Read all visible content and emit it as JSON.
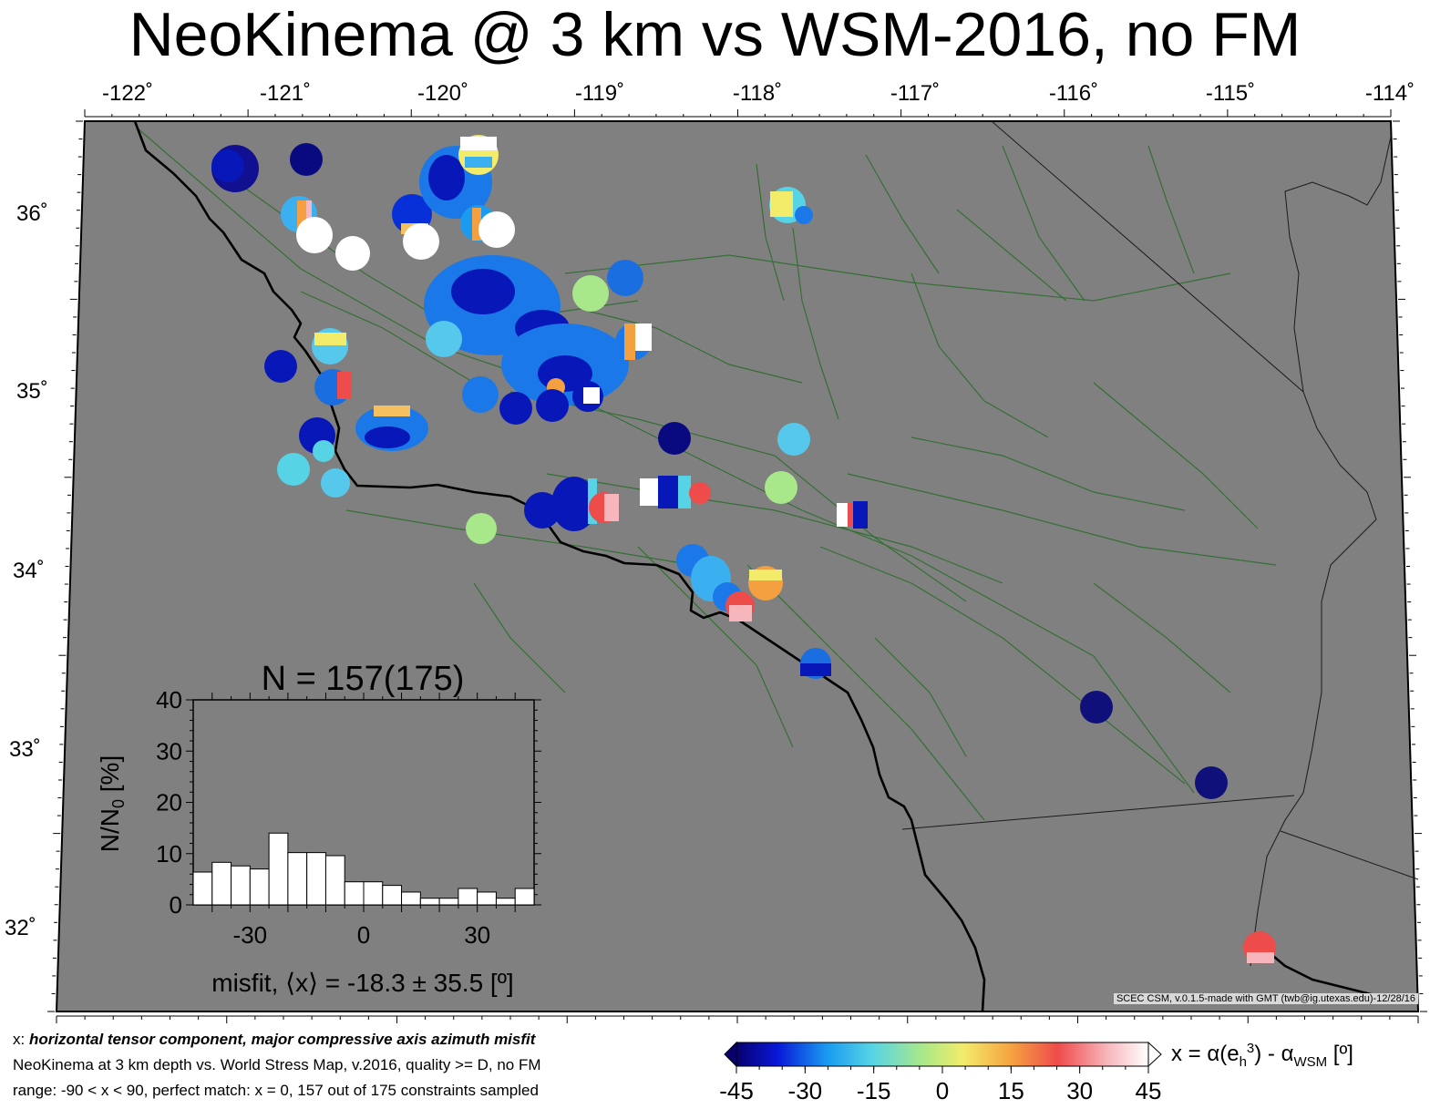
{
  "title": "NeoKinema @ 3 km vs WSM-2016, no FM",
  "longitude_labels": [
    "-122˚",
    "-121˚",
    "-120˚",
    "-119˚",
    "-118˚",
    "-117˚",
    "-116˚",
    "-115˚",
    "-114˚"
  ],
  "latitude_labels": [
    "36˚",
    "35˚",
    "34˚",
    "33˚",
    "32˚"
  ],
  "credit": "SCEC CSM, v.0.1.5-made with GMT (twb@ig.utexas.edu)-12/28/16",
  "notes": {
    "line1_prefix": "x: ",
    "line1_emph": "horizontal tensor component, major compressive axis azimuth misfit",
    "line2": "NeoKinema at 3 km depth vs.  World Stress Map, v.2016, quality >= D, no FM",
    "line3": "range: -90 < x < 90, perfect match: x = 0, 157 out of 175 constraints sampled"
  },
  "colorbar": {
    "ticks": [
      "-45",
      "-30",
      "-15",
      "0",
      "15",
      "30",
      "45"
    ],
    "range": [
      -45,
      45
    ],
    "formula": "x = α(e",
    "formula_sub": "h",
    "formula_sup": "3",
    "formula_rest": ") - α",
    "formula_sub2": "WSM",
    "formula_unit": " [º]"
  },
  "colors": {
    "map_bg": "#808080",
    "fault": "#2d6e2d",
    "coast": "#000000",
    "border": "#1a1a1a"
  },
  "chart_data": {
    "type": "bar",
    "title": "N = 157(175)",
    "xlabel": "misfit, ⟨x⟩ = -18.3 ± 35.5 [º]",
    "ylabel": "N/N",
    "ylabel_sub": "0",
    "ylabel_unit": " [%]",
    "xlim": [
      -45,
      45
    ],
    "ylim": [
      0,
      40
    ],
    "xticks": [
      -30,
      0,
      30
    ],
    "yticks": [
      0,
      10,
      20,
      30,
      40
    ],
    "bin_width": 5,
    "bin_starts": [
      -45,
      -40,
      -35,
      -30,
      -25,
      -20,
      -15,
      -10,
      -5,
      0,
      5,
      10,
      15,
      20,
      25,
      30,
      35,
      40
    ],
    "values": [
      6.4,
      8.3,
      7.6,
      7.0,
      14.0,
      10.2,
      10.2,
      9.6,
      4.5,
      4.5,
      3.8,
      2.5,
      1.3,
      1.3,
      3.2,
      2.5,
      1.3,
      3.2
    ]
  }
}
